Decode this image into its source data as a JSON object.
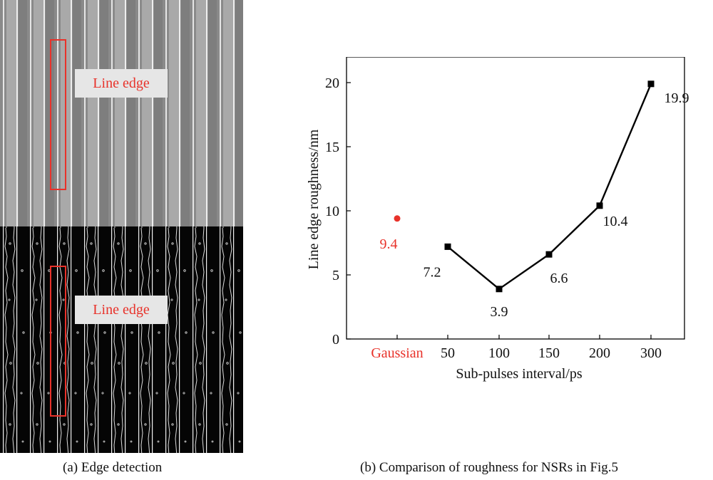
{
  "panel_a": {
    "caption": "(a) Edge detection",
    "label_top": "Line edge",
    "label_bottom": "Line edge",
    "highlight_color": "#e8322a"
  },
  "panel_b": {
    "caption": "(b) Comparison of roughness for NSRs in Fig.5"
  },
  "chart_data": {
    "type": "line",
    "xlabel": "Sub-pulses interval/ps",
    "ylabel": "Line edge roughness/nm",
    "ylim": [
      0,
      22
    ],
    "yticks": [
      0,
      5,
      10,
      15,
      20
    ],
    "categories": [
      "Gaussian",
      "50",
      "100",
      "150",
      "200",
      "300"
    ],
    "series": [
      {
        "name": "Sub-pulses",
        "color": "#000000",
        "marker": "square",
        "x": [
          "50",
          "100",
          "150",
          "200",
          "300"
        ],
        "values": [
          7.2,
          3.9,
          6.6,
          10.4,
          19.9
        ],
        "labels": [
          "7.2",
          "3.9",
          "6.6",
          "10.4",
          "19.9"
        ]
      },
      {
        "name": "Gaussian",
        "color": "#e8322a",
        "marker": "circle",
        "x": [
          "Gaussian"
        ],
        "values": [
          9.4
        ],
        "labels": [
          "9.4"
        ]
      }
    ],
    "category_label_colors": {
      "Gaussian": "#e8322a"
    }
  }
}
